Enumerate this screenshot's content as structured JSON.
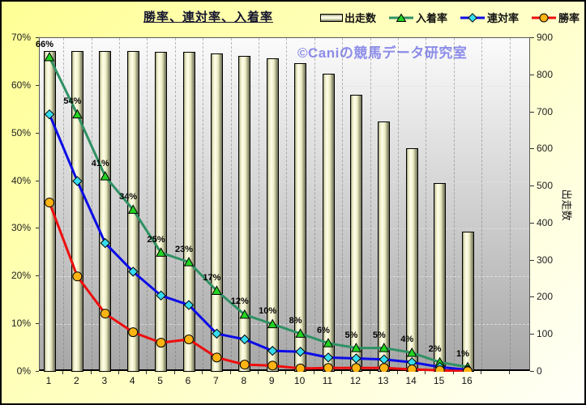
{
  "title": "勝率、連対率、入着率",
  "watermark": "©Caniの競馬データ研究室",
  "legend": {
    "starts": "出走数",
    "place": "入着率",
    "quinella": "連対率",
    "win": "勝率"
  },
  "colors": {
    "background_top": "#FFFF96",
    "background_bottom": "#FFFFF8",
    "plot_top": "#FBFBFB",
    "plot_bottom": "#A7A7A7",
    "bar_face": "#EAEAC0",
    "bar_highlight": "#FFFFEC",
    "bar_shadow": "#6E6E58",
    "place_line": "#2F9164",
    "place_marker": "#22D422",
    "quinella_line": "#0B0BE8",
    "quinella_marker": "#36DCEF",
    "win_line": "#EE0D0D",
    "win_marker": "#FFB414",
    "watermark": "#8C8CEA",
    "label": "#1A1A1A",
    "title": "#14142E"
  },
  "chart_data": {
    "type": "combo",
    "title": "勝率、連対率、入着率",
    "categories": [
      "1",
      "2",
      "3",
      "4",
      "5",
      "6",
      "7",
      "8",
      "9",
      "10",
      "11",
      "12",
      "13",
      "14",
      "15",
      "16"
    ],
    "series": [
      {
        "name": "出走数",
        "type": "bar",
        "axis": "right",
        "values": [
          866,
          865,
          864,
          864,
          863,
          862,
          858,
          852,
          845,
          833,
          803,
          748,
          675,
          604,
          510,
          378
        ]
      },
      {
        "name": "入着率",
        "type": "line",
        "marker": "triangle",
        "axis": "left",
        "values": [
          66,
          54,
          41,
          34,
          25,
          23,
          17,
          12,
          10,
          8,
          6,
          5,
          5,
          4,
          2,
          1
        ],
        "point_labels": [
          "66%",
          "54%",
          "41%",
          "34%",
          "25%",
          "23%",
          "17%",
          "12%",
          "10%",
          "8%",
          "6%",
          "5%",
          "5%",
          "4%",
          "2%",
          "1%"
        ]
      },
      {
        "name": "連対率",
        "type": "line",
        "marker": "diamond",
        "axis": "left",
        "values": [
          54,
          40,
          27,
          21,
          16,
          14,
          8,
          6.8,
          4.4,
          4.2,
          3,
          2.8,
          2.6,
          2,
          1,
          0.4
        ]
      },
      {
        "name": "勝率",
        "type": "line",
        "marker": "circle",
        "axis": "left",
        "values": [
          35.5,
          20,
          12.2,
          8.3,
          6.1,
          6.8,
          3,
          1.5,
          1.3,
          0.7,
          0.8,
          0.8,
          0.8,
          0.5,
          0.3,
          0.1
        ]
      }
    ],
    "left_axis": {
      "min": 0,
      "max": 70,
      "ticks": [
        "0%",
        "10%",
        "20%",
        "30%",
        "40%",
        "50%",
        "60%",
        "70%"
      ]
    },
    "right_axis": {
      "min": 0,
      "max": 900,
      "ticks": [
        "0",
        "100",
        "200",
        "300",
        "400",
        "500",
        "600",
        "700",
        "800",
        "900"
      ],
      "title": "出走数"
    },
    "grid": true,
    "legend_position": "top"
  }
}
